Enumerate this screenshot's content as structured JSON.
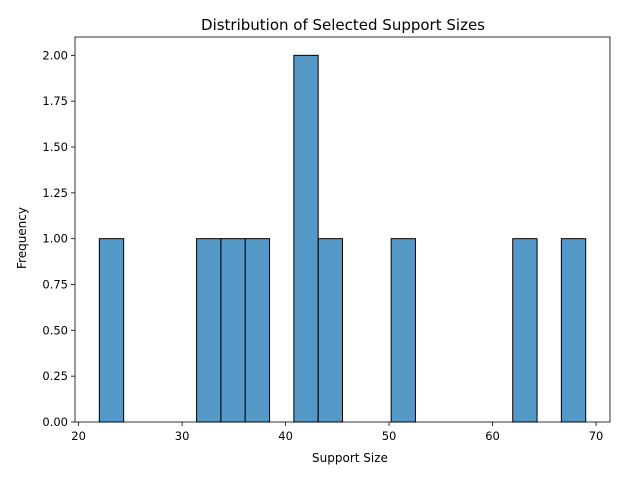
{
  "chart_data": {
    "type": "bar",
    "title": "Distribution of Selected Support Sizes",
    "xlabel": "Support Size",
    "ylabel": "Frequency",
    "xlim": [
      19.65,
      71.35
    ],
    "ylim": [
      0,
      2.1
    ],
    "x_ticks": [
      "20",
      "30",
      "40",
      "50",
      "60",
      "70"
    ],
    "y_ticks": [
      "0.00",
      "0.25",
      "0.50",
      "0.75",
      "1.00",
      "1.25",
      "1.50",
      "1.75",
      "2.00"
    ],
    "bins": [
      {
        "x0": 22.0,
        "x1": 24.35,
        "count": 1
      },
      {
        "x0": 31.4,
        "x1": 33.75,
        "count": 1
      },
      {
        "x0": 33.75,
        "x1": 36.1,
        "count": 1
      },
      {
        "x0": 36.1,
        "x1": 38.45,
        "count": 1
      },
      {
        "x0": 40.8,
        "x1": 43.15,
        "count": 2
      },
      {
        "x0": 43.15,
        "x1": 45.5,
        "count": 1
      },
      {
        "x0": 50.2,
        "x1": 52.55,
        "count": 1
      },
      {
        "x0": 61.95,
        "x1": 64.3,
        "count": 1
      },
      {
        "x0": 66.65,
        "x1": 69.0,
        "count": 1
      }
    ],
    "bar_color": "#5499c7",
    "edge_color": "#000000",
    "grid": false,
    "legend": "none"
  }
}
